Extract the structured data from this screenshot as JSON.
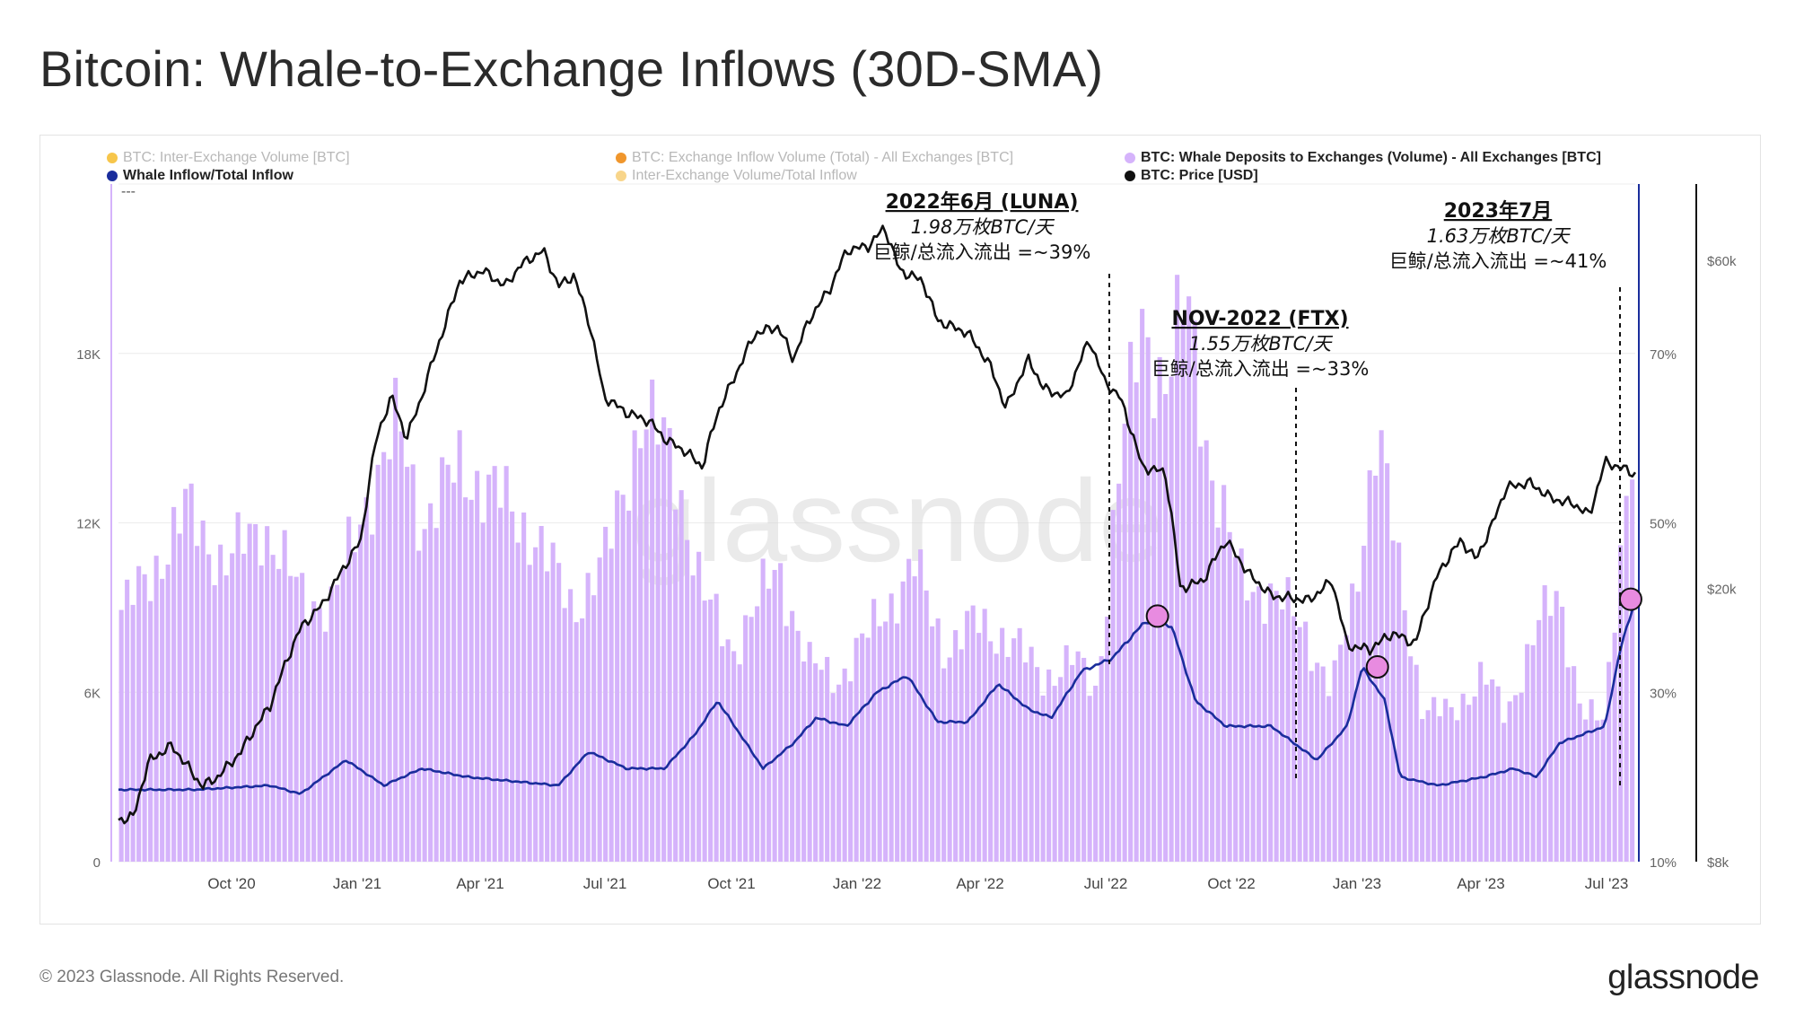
{
  "title": "Bitcoin: Whale-to-Exchange Inflows (30D-SMA)",
  "legend": [
    {
      "label": "BTC: Inter-Exchange Volume [BTC]",
      "color": "#f7c64b",
      "faded": true
    },
    {
      "label": "BTC: Exchange Inflow Volume (Total) - All Exchanges [BTC]",
      "color": "#f0962c",
      "faded": true
    },
    {
      "label": "BTC: Whale Deposits to Exchanges (Volume) - All Exchanges [BTC]",
      "color": "#d5b3fb",
      "faded": false
    },
    {
      "label": "Whale Inflow/Total Inflow",
      "color": "#1a2d9c",
      "faded": false
    },
    {
      "label": "Inter-Exchange Volume/Total Inflow",
      "color": "#f8d58a",
      "faded": true
    },
    {
      "label": "BTC: Price [USD]",
      "color": "#111111",
      "faded": false
    }
  ],
  "legend_extra": "---",
  "watermark": "glassnode",
  "footer": {
    "copyright": "© 2023 Glassnode. All Rights Reserved.",
    "logo": "glassnode"
  },
  "colors": {
    "bars": "#d5b3fb",
    "ratio_line": "#1a2d9c",
    "price_line": "#111111",
    "marker": "#e88be0"
  },
  "annotations": [
    {
      "title": "2022年6月 (LUNA)",
      "line1": "1.98万枚BTC/天",
      "line2": "巨鲸/总流入流出 =~39%"
    },
    {
      "title": "NOV-2022 (FTX)",
      "line1": "1.55万枚BTC/天",
      "line2": "巨鲸/总流入流出 =~33%"
    },
    {
      "title": "2023年7月",
      "line1": "1.63万枚BTC/天",
      "line2": "巨鲸/总流入流出 =~41%"
    }
  ],
  "chart_data": {
    "type": "bar",
    "x_ticks": [
      "Oct '20",
      "Jan '21",
      "Apr '21",
      "Jul '21",
      "Oct '21",
      "Jan '22",
      "Apr '22",
      "Jul '22",
      "Oct '22",
      "Jan '23",
      "Apr '23",
      "Jul '23"
    ],
    "y_left": {
      "label": "",
      "ticks": [
        "0",
        "6K",
        "12K",
        "18K"
      ],
      "range": [
        0,
        24000
      ]
    },
    "y_ratio": {
      "label": "",
      "ticks": [
        "10%",
        "30%",
        "50%",
        "70%"
      ],
      "range": [
        10,
        90
      ]
    },
    "y_price": {
      "label": "",
      "ticks": [
        "$8k",
        "$20k",
        "$60k"
      ],
      "scale": "log",
      "range": [
        8000,
        75000
      ]
    },
    "series": [
      {
        "name": "BTC: Whale Deposits to Exchanges (Volume) - All Exchanges [BTC]",
        "kind": "bars",
        "axis": "left",
        "x_start": "2020-07-20",
        "x_end": "2023-07-25",
        "keyframes": [
          {
            "t": 0.0,
            "v": 8800
          },
          {
            "t": 0.02,
            "v": 10000
          },
          {
            "t": 0.045,
            "v": 12500
          },
          {
            "t": 0.07,
            "v": 10500
          },
          {
            "t": 0.095,
            "v": 12000
          },
          {
            "t": 0.12,
            "v": 9500
          },
          {
            "t": 0.14,
            "v": 9000
          },
          {
            "t": 0.165,
            "v": 13000
          },
          {
            "t": 0.185,
            "v": 15500
          },
          {
            "t": 0.2,
            "v": 12000
          },
          {
            "t": 0.225,
            "v": 14000
          },
          {
            "t": 0.25,
            "v": 13000
          },
          {
            "t": 0.275,
            "v": 11500
          },
          {
            "t": 0.3,
            "v": 9000
          },
          {
            "t": 0.32,
            "v": 10500
          },
          {
            "t": 0.345,
            "v": 15800
          },
          {
            "t": 0.365,
            "v": 14500
          },
          {
            "t": 0.385,
            "v": 9500
          },
          {
            "t": 0.405,
            "v": 7500
          },
          {
            "t": 0.435,
            "v": 10500
          },
          {
            "t": 0.455,
            "v": 7000
          },
          {
            "t": 0.475,
            "v": 6500
          },
          {
            "t": 0.5,
            "v": 8500
          },
          {
            "t": 0.525,
            "v": 10500
          },
          {
            "t": 0.545,
            "v": 7500
          },
          {
            "t": 0.565,
            "v": 8500
          },
          {
            "t": 0.59,
            "v": 7800
          },
          {
            "t": 0.61,
            "v": 6500
          },
          {
            "t": 0.63,
            "v": 7200
          },
          {
            "t": 0.645,
            "v": 6000
          },
          {
            "t": 0.66,
            "v": 14000
          },
          {
            "t": 0.675,
            "v": 19000
          },
          {
            "t": 0.69,
            "v": 17000
          },
          {
            "t": 0.705,
            "v": 19800
          },
          {
            "t": 0.72,
            "v": 14000
          },
          {
            "t": 0.74,
            "v": 10000
          },
          {
            "t": 0.76,
            "v": 9500
          },
          {
            "t": 0.78,
            "v": 8500
          },
          {
            "t": 0.8,
            "v": 6000
          },
          {
            "t": 0.815,
            "v": 9500
          },
          {
            "t": 0.83,
            "v": 15500
          },
          {
            "t": 0.845,
            "v": 10000
          },
          {
            "t": 0.86,
            "v": 5500
          },
          {
            "t": 0.88,
            "v": 5200
          },
          {
            "t": 0.9,
            "v": 6800
          },
          {
            "t": 0.915,
            "v": 5000
          },
          {
            "t": 0.935,
            "v": 8500
          },
          {
            "t": 0.95,
            "v": 9200
          },
          {
            "t": 0.965,
            "v": 5500
          },
          {
            "t": 0.98,
            "v": 4800
          },
          {
            "t": 0.99,
            "v": 11000
          },
          {
            "t": 1.0,
            "v": 16300
          }
        ]
      },
      {
        "name": "Whale Inflow/Total Inflow",
        "kind": "line",
        "axis": "ratio",
        "keyframes": [
          {
            "t": 0.0,
            "v": 18.5
          },
          {
            "t": 0.05,
            "v": 18.5
          },
          {
            "t": 0.1,
            "v": 19
          },
          {
            "t": 0.12,
            "v": 18
          },
          {
            "t": 0.15,
            "v": 22
          },
          {
            "t": 0.175,
            "v": 19
          },
          {
            "t": 0.2,
            "v": 21
          },
          {
            "t": 0.23,
            "v": 20
          },
          {
            "t": 0.26,
            "v": 19.5
          },
          {
            "t": 0.29,
            "v": 19
          },
          {
            "t": 0.31,
            "v": 23
          },
          {
            "t": 0.335,
            "v": 21
          },
          {
            "t": 0.36,
            "v": 21
          },
          {
            "t": 0.38,
            "v": 25
          },
          {
            "t": 0.395,
            "v": 29
          },
          {
            "t": 0.41,
            "v": 25
          },
          {
            "t": 0.425,
            "v": 21
          },
          {
            "t": 0.445,
            "v": 24
          },
          {
            "t": 0.46,
            "v": 27
          },
          {
            "t": 0.48,
            "v": 26
          },
          {
            "t": 0.5,
            "v": 30
          },
          {
            "t": 0.52,
            "v": 32
          },
          {
            "t": 0.54,
            "v": 26.5
          },
          {
            "t": 0.56,
            "v": 26.5
          },
          {
            "t": 0.58,
            "v": 31
          },
          {
            "t": 0.6,
            "v": 28
          },
          {
            "t": 0.615,
            "v": 27
          },
          {
            "t": 0.635,
            "v": 32.5
          },
          {
            "t": 0.655,
            "v": 34
          },
          {
            "t": 0.675,
            "v": 38
          },
          {
            "t": 0.685,
            "v": 39
          },
          {
            "t": 0.695,
            "v": 37.5
          },
          {
            "t": 0.71,
            "v": 29
          },
          {
            "t": 0.73,
            "v": 26
          },
          {
            "t": 0.76,
            "v": 26
          },
          {
            "t": 0.79,
            "v": 22
          },
          {
            "t": 0.81,
            "v": 26
          },
          {
            "t": 0.82,
            "v": 33
          },
          {
            "t": 0.835,
            "v": 29
          },
          {
            "t": 0.845,
            "v": 20
          },
          {
            "t": 0.87,
            "v": 19
          },
          {
            "t": 0.9,
            "v": 20
          },
          {
            "t": 0.92,
            "v": 21
          },
          {
            "t": 0.935,
            "v": 20
          },
          {
            "t": 0.95,
            "v": 24
          },
          {
            "t": 0.965,
            "v": 25
          },
          {
            "t": 0.98,
            "v": 26
          },
          {
            "t": 0.99,
            "v": 35
          },
          {
            "t": 1.0,
            "v": 41
          }
        ]
      },
      {
        "name": "BTC: Price [USD]",
        "kind": "line",
        "axis": "price",
        "keyframes": [
          {
            "t": 0.0,
            "v": 9200
          },
          {
            "t": 0.01,
            "v": 9300
          },
          {
            "t": 0.02,
            "v": 11200
          },
          {
            "t": 0.035,
            "v": 11800
          },
          {
            "t": 0.055,
            "v": 10300
          },
          {
            "t": 0.065,
            "v": 10600
          },
          {
            "t": 0.08,
            "v": 11500
          },
          {
            "t": 0.1,
            "v": 13500
          },
          {
            "t": 0.12,
            "v": 17500
          },
          {
            "t": 0.135,
            "v": 19000
          },
          {
            "t": 0.16,
            "v": 23500
          },
          {
            "t": 0.17,
            "v": 33000
          },
          {
            "t": 0.18,
            "v": 38000
          },
          {
            "t": 0.19,
            "v": 33000
          },
          {
            "t": 0.2,
            "v": 38000
          },
          {
            "t": 0.215,
            "v": 48000
          },
          {
            "t": 0.225,
            "v": 56000
          },
          {
            "t": 0.24,
            "v": 58000
          },
          {
            "t": 0.255,
            "v": 55000
          },
          {
            "t": 0.265,
            "v": 59000
          },
          {
            "t": 0.28,
            "v": 62000
          },
          {
            "t": 0.29,
            "v": 55000
          },
          {
            "t": 0.3,
            "v": 57000
          },
          {
            "t": 0.31,
            "v": 49000
          },
          {
            "t": 0.32,
            "v": 38000
          },
          {
            "t": 0.335,
            "v": 36000
          },
          {
            "t": 0.35,
            "v": 35000
          },
          {
            "t": 0.36,
            "v": 33000
          },
          {
            "t": 0.375,
            "v": 31500
          },
          {
            "t": 0.385,
            "v": 30000
          },
          {
            "t": 0.395,
            "v": 36000
          },
          {
            "t": 0.405,
            "v": 40000
          },
          {
            "t": 0.42,
            "v": 47000
          },
          {
            "t": 0.435,
            "v": 48000
          },
          {
            "t": 0.445,
            "v": 43000
          },
          {
            "t": 0.455,
            "v": 49000
          },
          {
            "t": 0.47,
            "v": 55000
          },
          {
            "t": 0.48,
            "v": 62000
          },
          {
            "t": 0.495,
            "v": 63000
          },
          {
            "t": 0.505,
            "v": 67000
          },
          {
            "t": 0.515,
            "v": 58000
          },
          {
            "t": 0.53,
            "v": 56000
          },
          {
            "t": 0.54,
            "v": 49000
          },
          {
            "t": 0.56,
            "v": 47000
          },
          {
            "t": 0.575,
            "v": 42000
          },
          {
            "t": 0.585,
            "v": 36500
          },
          {
            "t": 0.6,
            "v": 43000
          },
          {
            "t": 0.61,
            "v": 39000
          },
          {
            "t": 0.625,
            "v": 38000
          },
          {
            "t": 0.64,
            "v": 46000
          },
          {
            "t": 0.65,
            "v": 40000
          },
          {
            "t": 0.66,
            "v": 38000
          },
          {
            "t": 0.675,
            "v": 30000
          },
          {
            "t": 0.69,
            "v": 29500
          },
          {
            "t": 0.7,
            "v": 20000
          },
          {
            "t": 0.715,
            "v": 20500
          },
          {
            "t": 0.73,
            "v": 23500
          },
          {
            "t": 0.745,
            "v": 21000
          },
          {
            "t": 0.76,
            "v": 19500
          },
          {
            "t": 0.785,
            "v": 19200
          },
          {
            "t": 0.8,
            "v": 20500
          },
          {
            "t": 0.81,
            "v": 16500
          },
          {
            "t": 0.825,
            "v": 16300
          },
          {
            "t": 0.84,
            "v": 17200
          },
          {
            "t": 0.855,
            "v": 16600
          },
          {
            "t": 0.87,
            "v": 21000
          },
          {
            "t": 0.885,
            "v": 23500
          },
          {
            "t": 0.895,
            "v": 22000
          },
          {
            "t": 0.905,
            "v": 24500
          },
          {
            "t": 0.915,
            "v": 28000
          },
          {
            "t": 0.93,
            "v": 28500
          },
          {
            "t": 0.945,
            "v": 27000
          },
          {
            "t": 0.96,
            "v": 26500
          },
          {
            "t": 0.97,
            "v": 25500
          },
          {
            "t": 0.98,
            "v": 30500
          },
          {
            "t": 0.99,
            "v": 30000
          },
          {
            "t": 1.0,
            "v": 29300
          }
        ]
      }
    ],
    "markers": [
      {
        "t": 0.685,
        "axis": "ratio",
        "v": 39
      },
      {
        "t": 0.83,
        "axis": "ratio",
        "v": 33
      },
      {
        "t": 0.997,
        "axis": "ratio",
        "v": 41
      }
    ],
    "grid": true,
    "legend_position": "top"
  }
}
